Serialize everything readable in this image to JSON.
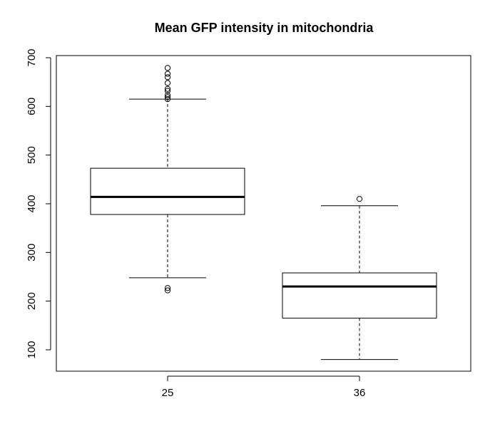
{
  "chart_data": {
    "type": "boxplot",
    "title": "Mean GFP intensity in mitochondria",
    "xlabel": "",
    "ylabel": "",
    "categories": [
      "25",
      "36"
    ],
    "ylim": [
      55,
      700
    ],
    "yticks": [
      100,
      200,
      300,
      400,
      500,
      600,
      700
    ],
    "boxes": [
      {
        "category": "25",
        "whisker_low": 248,
        "q1": 378,
        "median": 414,
        "q3": 473,
        "whisker_high": 615,
        "outliers": [
          222,
          227,
          615,
          619,
          623,
          632,
          636,
          648,
          660,
          667,
          679
        ]
      },
      {
        "category": "36",
        "whisker_low": 80,
        "q1": 165,
        "median": 230,
        "q3": 258,
        "whisker_high": 396,
        "outliers": [
          410
        ]
      }
    ],
    "grid": false,
    "legend": "none"
  }
}
